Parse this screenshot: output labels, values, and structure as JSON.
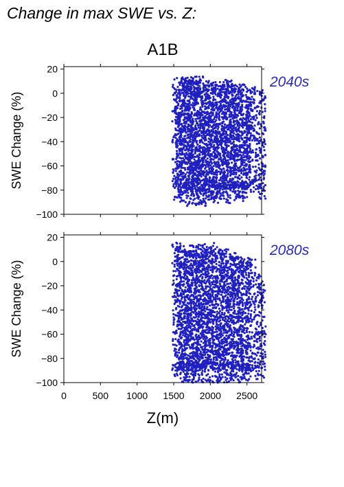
{
  "figure": {
    "title": "Change in max SWE vs. Z:",
    "subtitle": "A1B",
    "xlabel": "Z(m)"
  },
  "colors": {
    "points": "#2020c0",
    "axis": "#000000",
    "panel_label": "#2a2ab4"
  },
  "chart_data": [
    {
      "type": "scatter",
      "panel_label": "2040s",
      "ylabel": "SWE Change (%)",
      "xlim": [
        0,
        2700
      ],
      "ylim": [
        -100,
        22
      ],
      "x_ticks": [
        "0",
        "500",
        "1000",
        "1500",
        "2000",
        "2500"
      ],
      "y_ticks": [
        "20",
        "0",
        "−20",
        "−40",
        "−60",
        "−80",
        "−100"
      ],
      "grid": false,
      "series": [
        {
          "bands": [
            {
              "x": 1545,
              "ymin": -90,
              "ymax": 13
            },
            {
              "x": 1590,
              "ymin": -86,
              "ymax": 12
            },
            {
              "x": 1640,
              "ymin": -92,
              "ymax": 14
            },
            {
              "x": 1680,
              "ymin": -89,
              "ymax": 13
            },
            {
              "x": 1720,
              "ymin": -93,
              "ymax": 14
            },
            {
              "x": 1760,
              "ymin": -91,
              "ymax": 12
            },
            {
              "x": 1800,
              "ymin": -95,
              "ymax": 13
            },
            {
              "x": 1850,
              "ymin": -94,
              "ymax": 14
            },
            {
              "x": 1890,
              "ymin": -92,
              "ymax": 11
            },
            {
              "x": 1935,
              "ymin": -93,
              "ymax": 8
            },
            {
              "x": 1985,
              "ymin": -88,
              "ymax": 12
            },
            {
              "x": 2030,
              "ymin": -90,
              "ymax": 9
            },
            {
              "x": 2080,
              "ymin": -92,
              "ymax": 8
            },
            {
              "x": 2130,
              "ymin": -90,
              "ymax": 10
            },
            {
              "x": 2180,
              "ymin": -89,
              "ymax": 12
            },
            {
              "x": 2230,
              "ymin": -91,
              "ymax": 9
            },
            {
              "x": 2280,
              "ymin": -89,
              "ymax": 11
            },
            {
              "x": 2330,
              "ymin": -88,
              "ymax": 7
            },
            {
              "x": 2380,
              "ymin": -87,
              "ymax": 5
            },
            {
              "x": 2440,
              "ymin": -90,
              "ymax": 8
            },
            {
              "x": 2490,
              "ymin": -87,
              "ymax": 4
            },
            {
              "x": 2560,
              "ymin": -84,
              "ymax": 6
            },
            {
              "x": 2690,
              "ymin": -88,
              "ymax": 3
            }
          ]
        }
      ]
    },
    {
      "type": "scatter",
      "panel_label": "2080s",
      "ylabel": "SWE Change (%)",
      "xlim": [
        0,
        2700
      ],
      "ylim": [
        -100,
        22
      ],
      "x_ticks": [
        "0",
        "500",
        "1000",
        "1500",
        "2000",
        "2500"
      ],
      "y_ticks": [
        "20",
        "0",
        "−20",
        "−40",
        "−60",
        "−80",
        "−100"
      ],
      "grid": false,
      "series": [
        {
          "bands": [
            {
              "x": 1545,
              "ymin": -100,
              "ymax": 16
            },
            {
              "x": 1590,
              "ymin": -100,
              "ymax": 15
            },
            {
              "x": 1640,
              "ymin": -100,
              "ymax": 12
            },
            {
              "x": 1680,
              "ymin": -100,
              "ymax": 10
            },
            {
              "x": 1720,
              "ymin": -100,
              "ymax": 9
            },
            {
              "x": 1760,
              "ymin": -100,
              "ymax": 14
            },
            {
              "x": 1800,
              "ymin": -100,
              "ymax": 13
            },
            {
              "x": 1850,
              "ymin": -100,
              "ymax": 15
            },
            {
              "x": 1890,
              "ymin": -100,
              "ymax": 12
            },
            {
              "x": 1935,
              "ymin": -100,
              "ymax": 14
            },
            {
              "x": 1985,
              "ymin": -100,
              "ymax": 16
            },
            {
              "x": 2030,
              "ymin": -100,
              "ymax": 12
            },
            {
              "x": 2080,
              "ymin": -100,
              "ymax": 10
            },
            {
              "x": 2130,
              "ymin": -100,
              "ymax": 9
            },
            {
              "x": 2180,
              "ymin": -100,
              "ymax": 11
            },
            {
              "x": 2230,
              "ymin": -100,
              "ymax": 8
            },
            {
              "x": 2280,
              "ymin": -100,
              "ymax": 7
            },
            {
              "x": 2330,
              "ymin": -100,
              "ymax": 5
            },
            {
              "x": 2380,
              "ymin": -100,
              "ymax": 4
            },
            {
              "x": 2440,
              "ymin": -100,
              "ymax": 3
            },
            {
              "x": 2490,
              "ymin": -100,
              "ymax": 2
            },
            {
              "x": 2560,
              "ymin": -100,
              "ymax": 3
            },
            {
              "x": 2690,
              "ymin": -100,
              "ymax": -10
            }
          ]
        }
      ]
    }
  ]
}
